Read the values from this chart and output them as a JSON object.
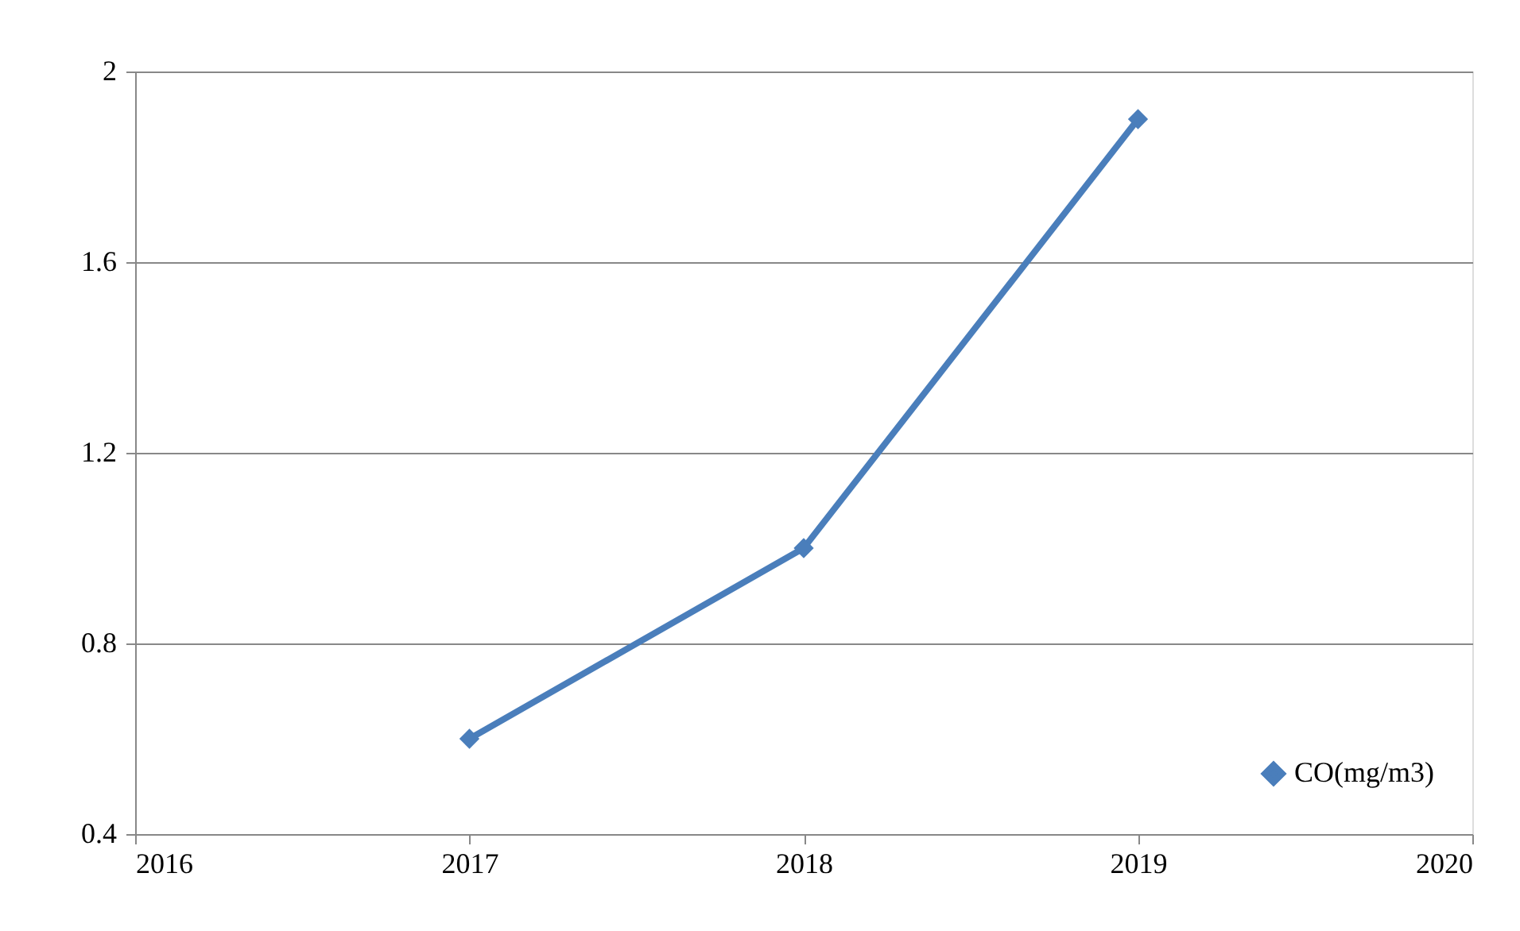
{
  "chart_data": {
    "type": "line",
    "x": [
      2017,
      2018,
      2019
    ],
    "series": [
      {
        "name": "CO(mg/m3)",
        "color": "#4a7ebb",
        "values": [
          0.6,
          1.0,
          1.9
        ]
      }
    ],
    "xlim": [
      2016,
      2020
    ],
    "xticks": [
      2016,
      2017,
      2018,
      2019,
      2020
    ],
    "ylim": [
      0.4,
      2
    ],
    "yticks": [
      0.4,
      0.8,
      1.2,
      1.6,
      2
    ],
    "grid": "y",
    "legend": "bottom right",
    "marker": "diamond",
    "line_style": "solid"
  }
}
